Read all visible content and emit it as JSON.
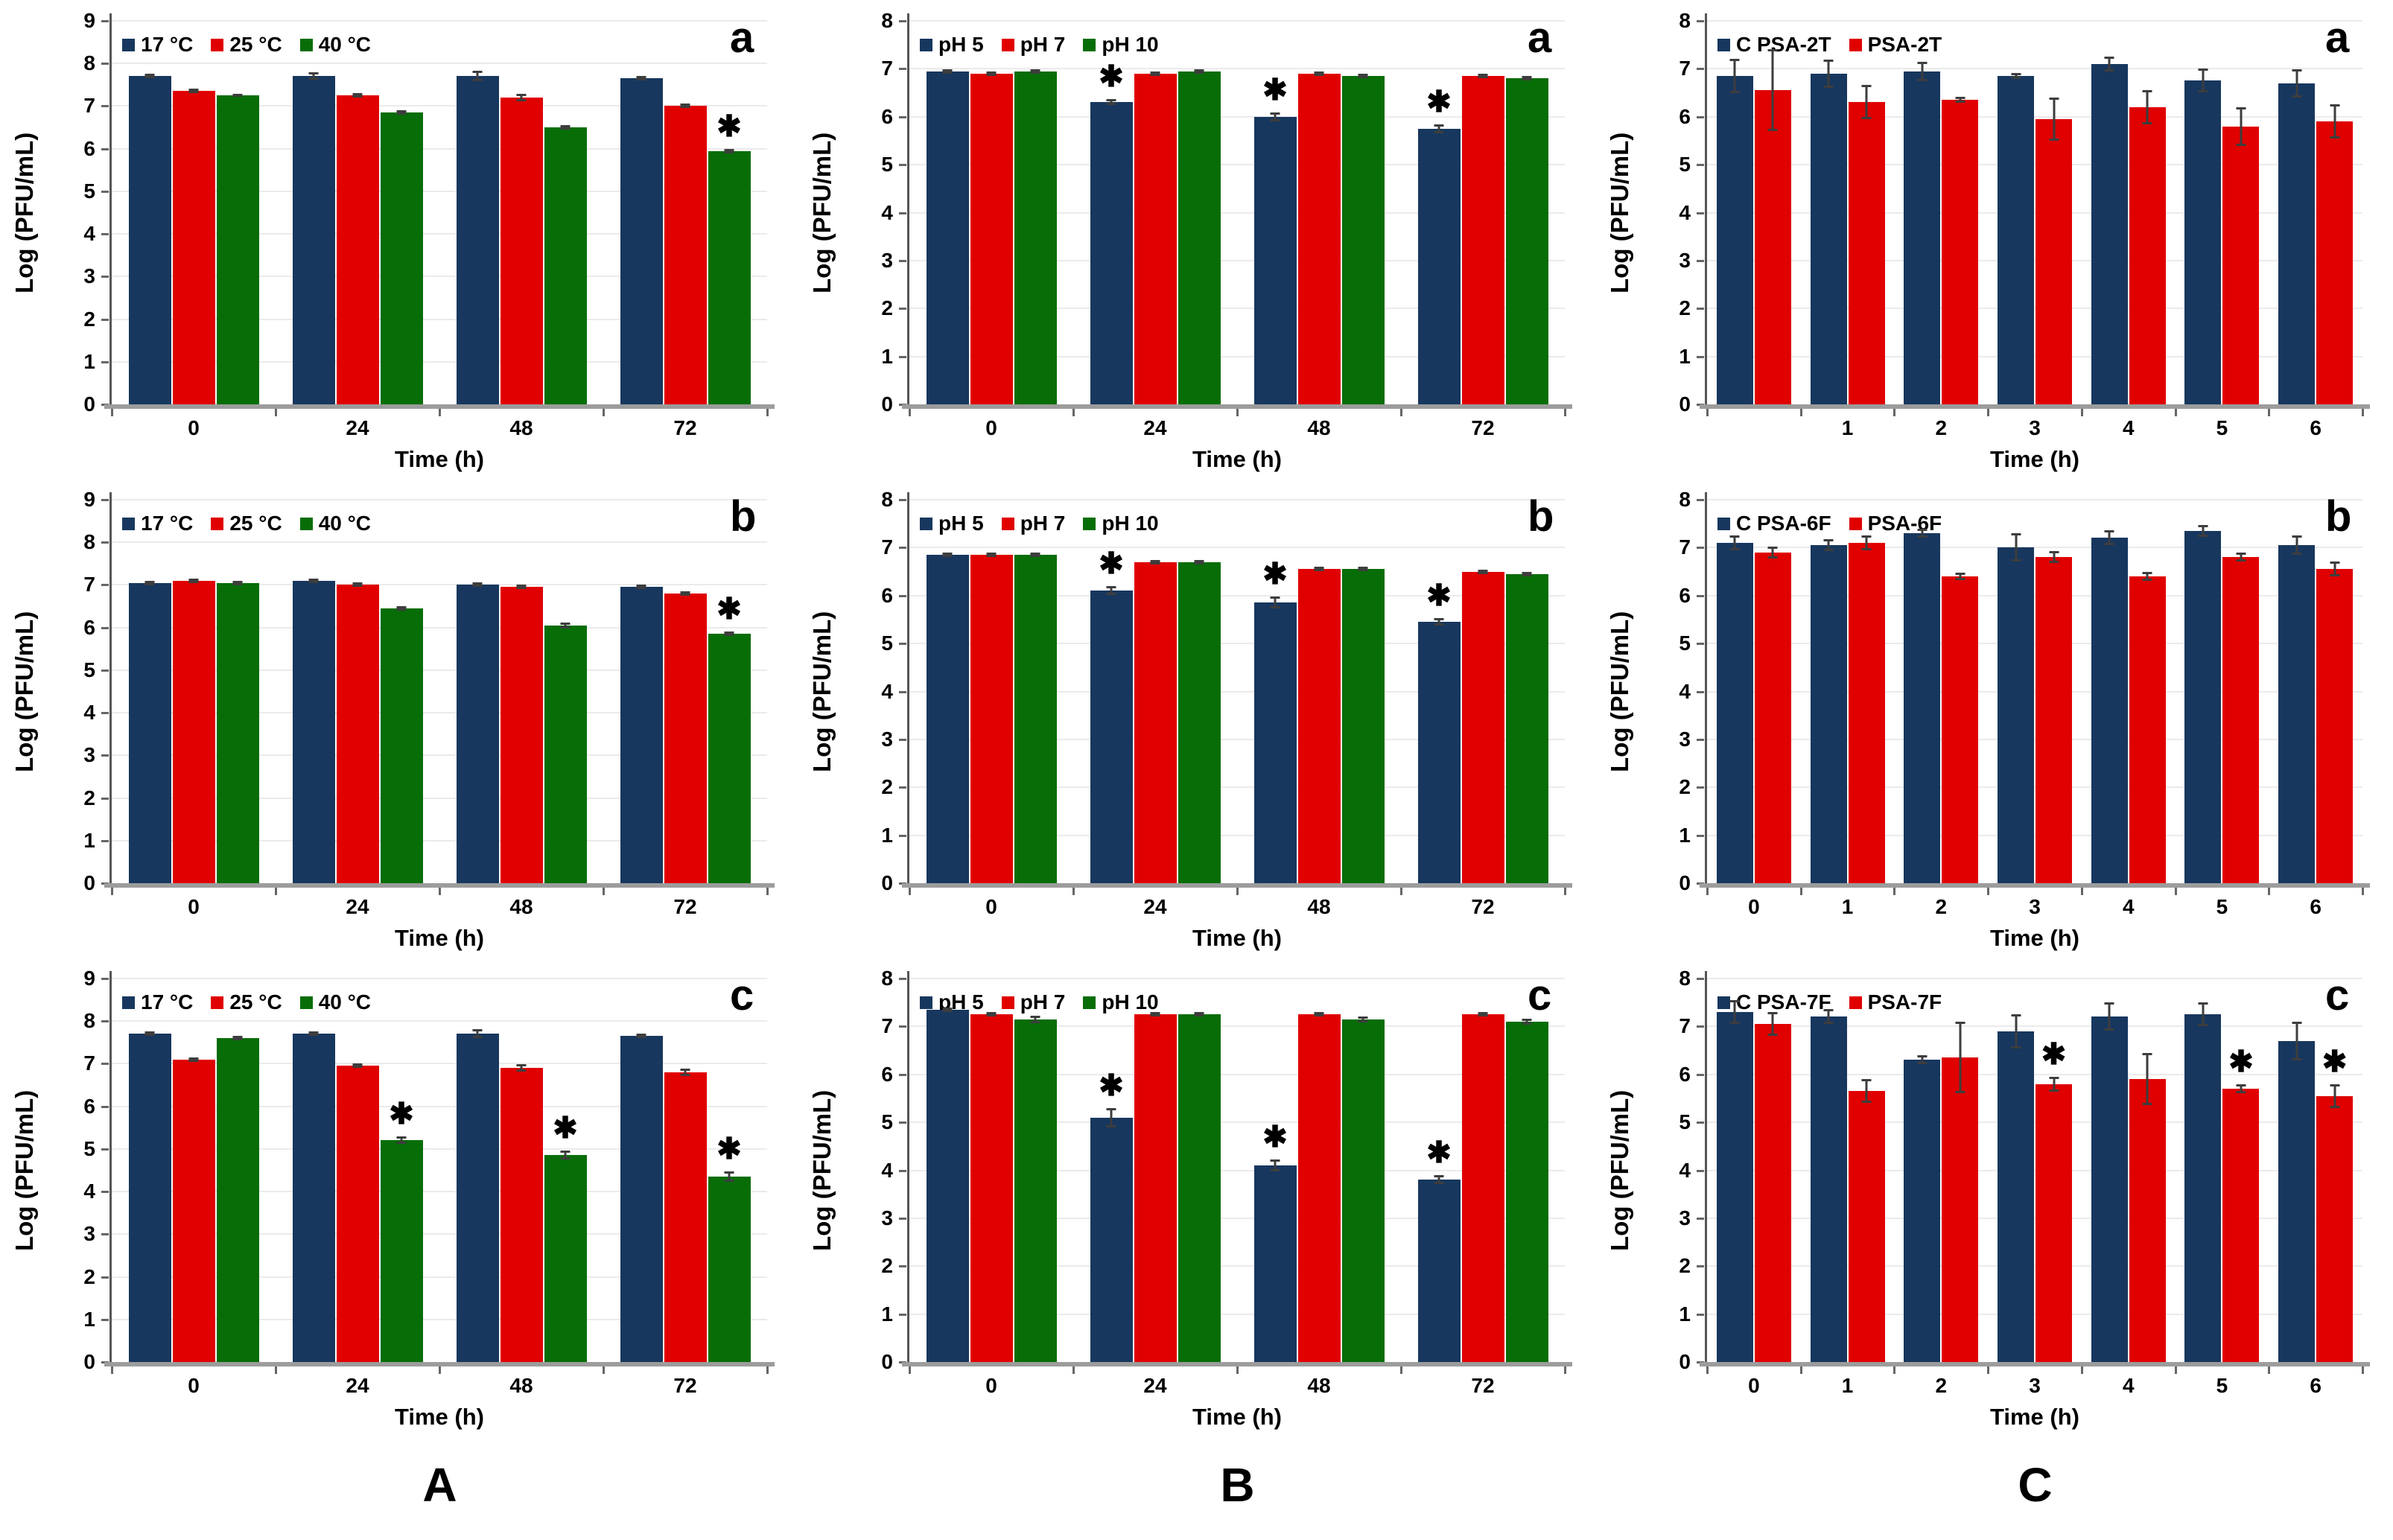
{
  "sig_marker": "✱",
  "column_letters": [
    "A",
    "B",
    "C"
  ],
  "colors": {
    "navy": "#17375E",
    "red": "#E00000",
    "green": "#076D07"
  },
  "chart_data": [
    {
      "id": "A-a",
      "type": "bar",
      "panel_letter": "a",
      "ylabel": "Log (PFU/mL)",
      "xlabel": "Time (h)",
      "ymax": 9,
      "yticks": [
        "0",
        "1",
        "2",
        "3",
        "4",
        "5",
        "6",
        "7",
        "8",
        "9"
      ],
      "categories": [
        "0",
        "24",
        "48",
        "72"
      ],
      "series": [
        {
          "name": "17 °C",
          "color": "#17375E",
          "values": [
            7.7,
            7.7,
            7.7,
            7.65
          ],
          "err": [
            0.06,
            0.08,
            0.12,
            0.06
          ]
        },
        {
          "name": "25 °C",
          "color": "#E00000",
          "values": [
            7.35,
            7.25,
            7.2,
            7.0
          ],
          "err": [
            0.05,
            0.05,
            0.08,
            0.05
          ]
        },
        {
          "name": "40 °C",
          "color": "#076D07",
          "values": [
            7.25,
            6.85,
            6.5,
            5.95
          ],
          "err": [
            0.04,
            0.05,
            0.05,
            0.06
          ]
        }
      ],
      "asterisks": [
        {
          "cat": 3,
          "series": 2
        }
      ]
    },
    {
      "id": "B-a",
      "type": "bar",
      "panel_letter": "a",
      "ylabel": "Log (PFU/mL)",
      "xlabel": "Time (h)",
      "ymax": 8,
      "yticks": [
        "0",
        "1",
        "2",
        "3",
        "4",
        "5",
        "6",
        "7",
        "8"
      ],
      "categories": [
        "0",
        "24",
        "48",
        "72"
      ],
      "series": [
        {
          "name": "pH 5",
          "color": "#17375E",
          "values": [
            6.95,
            6.3,
            6.0,
            5.75
          ],
          "err": [
            0.05,
            0.06,
            0.1,
            0.1
          ]
        },
        {
          "name": "pH 7",
          "color": "#E00000",
          "values": [
            6.9,
            6.9,
            6.9,
            6.85
          ],
          "err": [
            0.05,
            0.05,
            0.05,
            0.05
          ]
        },
        {
          "name": "pH 10",
          "color": "#076D07",
          "values": [
            6.95,
            6.95,
            6.85,
            6.8
          ],
          "err": [
            0.05,
            0.05,
            0.05,
            0.05
          ]
        }
      ],
      "asterisks": [
        {
          "cat": 1,
          "series": 0
        },
        {
          "cat": 2,
          "series": 0
        },
        {
          "cat": 3,
          "series": 0
        }
      ]
    },
    {
      "id": "C-a",
      "type": "bar",
      "panel_letter": "a",
      "ylabel": "Log (PFU/mL)",
      "xlabel": "Time (h)",
      "ymax": 8,
      "yticks": [
        "0",
        "1",
        "2",
        "3",
        "4",
        "5",
        "6",
        "7",
        "8"
      ],
      "categories": [
        "",
        "1",
        "2",
        "3",
        "4",
        "5",
        "6"
      ],
      "series": [
        {
          "name": "C PSA-2T",
          "color": "#17375E",
          "values": [
            6.85,
            6.9,
            6.95,
            6.85,
            7.1,
            6.75,
            6.7
          ],
          "err": [
            0.35,
            0.3,
            0.2,
            0.06,
            0.15,
            0.25,
            0.3
          ]
        },
        {
          "name": "PSA-2T",
          "color": "#E00000",
          "values": [
            6.55,
            6.3,
            6.35,
            5.95,
            6.2,
            5.8,
            5.9
          ],
          "err": [
            0.85,
            0.35,
            0.06,
            0.45,
            0.35,
            0.4,
            0.35
          ]
        }
      ],
      "asterisks": []
    },
    {
      "id": "A-b",
      "type": "bar",
      "panel_letter": "b",
      "ylabel": "Log (PFU/mL)",
      "xlabel": "Time (h)",
      "ymax": 9,
      "yticks": [
        "0",
        "1",
        "2",
        "3",
        "4",
        "5",
        "6",
        "7",
        "8",
        "9"
      ],
      "categories": [
        "0",
        "24",
        "48",
        "72"
      ],
      "series": [
        {
          "name": "17 °C",
          "color": "#17375E",
          "values": [
            7.05,
            7.1,
            7.0,
            6.95
          ],
          "err": [
            0.05,
            0.05,
            0.06,
            0.06
          ]
        },
        {
          "name": "25 °C",
          "color": "#E00000",
          "values": [
            7.1,
            7.0,
            6.95,
            6.8
          ],
          "err": [
            0.05,
            0.06,
            0.06,
            0.06
          ]
        },
        {
          "name": "40 °C",
          "color": "#076D07",
          "values": [
            7.05,
            6.45,
            6.05,
            5.85
          ],
          "err": [
            0.05,
            0.06,
            0.07,
            0.06
          ]
        }
      ],
      "asterisks": [
        {
          "cat": 3,
          "series": 2
        }
      ]
    },
    {
      "id": "B-b",
      "type": "bar",
      "panel_letter": "b",
      "ylabel": "Log (PFU/mL)",
      "xlabel": "Time (h)",
      "ymax": 8,
      "yticks": [
        "0",
        "1",
        "2",
        "3",
        "4",
        "5",
        "6",
        "7",
        "8"
      ],
      "categories": [
        "0",
        "24",
        "48",
        "72"
      ],
      "series": [
        {
          "name": "pH 5",
          "color": "#17375E",
          "values": [
            6.85,
            6.1,
            5.85,
            5.45
          ],
          "err": [
            0.05,
            0.1,
            0.12,
            0.08
          ]
        },
        {
          "name": "pH 7",
          "color": "#E00000",
          "values": [
            6.85,
            6.7,
            6.55,
            6.5
          ],
          "err": [
            0.05,
            0.05,
            0.05,
            0.05
          ]
        },
        {
          "name": "pH 10",
          "color": "#076D07",
          "values": [
            6.85,
            6.7,
            6.55,
            6.45
          ],
          "err": [
            0.05,
            0.05,
            0.05,
            0.05
          ]
        }
      ],
      "asterisks": [
        {
          "cat": 1,
          "series": 0
        },
        {
          "cat": 2,
          "series": 0
        },
        {
          "cat": 3,
          "series": 0
        }
      ]
    },
    {
      "id": "C-b",
      "type": "bar",
      "panel_letter": "b",
      "ylabel": "Log (PFU/mL)",
      "xlabel": "Time (h)",
      "ymax": 8,
      "yticks": [
        "0",
        "1",
        "2",
        "3",
        "4",
        "5",
        "6",
        "7",
        "8"
      ],
      "categories": [
        "0",
        "1",
        "2",
        "3",
        "4",
        "5",
        "6"
      ],
      "series": [
        {
          "name": "C PSA-6F",
          "color": "#17375E",
          "values": [
            7.1,
            7.05,
            7.3,
            7.0,
            7.2,
            7.35,
            7.05
          ],
          "err": [
            0.15,
            0.12,
            0.1,
            0.3,
            0.15,
            0.12,
            0.2
          ]
        },
        {
          "name": "PSA-6F",
          "color": "#E00000",
          "values": [
            6.9,
            7.1,
            6.4,
            6.8,
            6.4,
            6.8,
            6.55
          ],
          "err": [
            0.12,
            0.15,
            0.08,
            0.12,
            0.1,
            0.1,
            0.15
          ]
        }
      ],
      "asterisks": []
    },
    {
      "id": "A-c",
      "type": "bar",
      "panel_letter": "c",
      "ylabel": "Log (PFU/mL)",
      "xlabel": "Time (h)",
      "ymax": 9,
      "yticks": [
        "0",
        "1",
        "2",
        "3",
        "4",
        "5",
        "6",
        "7",
        "8",
        "9"
      ],
      "categories": [
        "0",
        "24",
        "48",
        "72"
      ],
      "series": [
        {
          "name": "17 °C",
          "color": "#17375E",
          "values": [
            7.7,
            7.7,
            7.7,
            7.65
          ],
          "err": [
            0.06,
            0.06,
            0.1,
            0.06
          ]
        },
        {
          "name": "25 °C",
          "color": "#E00000",
          "values": [
            7.1,
            6.95,
            6.9,
            6.8
          ],
          "err": [
            0.06,
            0.06,
            0.08,
            0.08
          ]
        },
        {
          "name": "40 °C",
          "color": "#076D07",
          "values": [
            7.6,
            5.2,
            4.85,
            4.35
          ],
          "err": [
            0.05,
            0.08,
            0.1,
            0.12
          ]
        }
      ],
      "asterisks": [
        {
          "cat": 1,
          "series": 2
        },
        {
          "cat": 2,
          "series": 2
        },
        {
          "cat": 3,
          "series": 2
        }
      ]
    },
    {
      "id": "B-c",
      "type": "bar",
      "panel_letter": "c",
      "ylabel": "Log (PFU/mL)",
      "xlabel": "Time (h)",
      "ymax": 8,
      "yticks": [
        "0",
        "1",
        "2",
        "3",
        "4",
        "5",
        "6",
        "7",
        "8"
      ],
      "categories": [
        "0",
        "24",
        "48",
        "72"
      ],
      "series": [
        {
          "name": "pH 5",
          "color": "#17375E",
          "values": [
            7.35,
            5.1,
            4.1,
            3.8
          ],
          "err": [
            0.05,
            0.2,
            0.12,
            0.1
          ]
        },
        {
          "name": "pH 7",
          "color": "#E00000",
          "values": [
            7.25,
            7.25,
            7.25,
            7.25
          ],
          "err": [
            0.05,
            0.05,
            0.05,
            0.05
          ]
        },
        {
          "name": "pH 10",
          "color": "#076D07",
          "values": [
            7.15,
            7.25,
            7.15,
            7.1
          ],
          "err": [
            0.08,
            0.05,
            0.06,
            0.06
          ]
        }
      ],
      "asterisks": [
        {
          "cat": 1,
          "series": 0
        },
        {
          "cat": 2,
          "series": 0
        },
        {
          "cat": 3,
          "series": 0
        }
      ]
    },
    {
      "id": "C-c",
      "type": "bar",
      "panel_letter": "c",
      "ylabel": "Log (PFU/mL)",
      "xlabel": "Time (h)",
      "ymax": 8,
      "yticks": [
        "0",
        "1",
        "2",
        "3",
        "4",
        "5",
        "6",
        "7",
        "8"
      ],
      "categories": [
        "0",
        "1",
        "2",
        "3",
        "4",
        "5",
        "6"
      ],
      "series": [
        {
          "name": "C PSA-7F",
          "color": "#17375E",
          "values": [
            7.3,
            7.2,
            6.3,
            6.9,
            7.2,
            7.25,
            6.7
          ],
          "err": [
            0.25,
            0.15,
            0.1,
            0.35,
            0.3,
            0.25,
            0.4
          ]
        },
        {
          "name": "PSA-7F",
          "color": "#E00000",
          "values": [
            7.05,
            5.65,
            6.35,
            5.8,
            5.9,
            5.7,
            5.55
          ],
          "err": [
            0.25,
            0.25,
            0.75,
            0.15,
            0.55,
            0.1,
            0.25
          ]
        }
      ],
      "asterisks": [
        {
          "cat": 3,
          "series": 1
        },
        {
          "cat": 5,
          "series": 1
        },
        {
          "cat": 6,
          "series": 1
        }
      ]
    }
  ]
}
